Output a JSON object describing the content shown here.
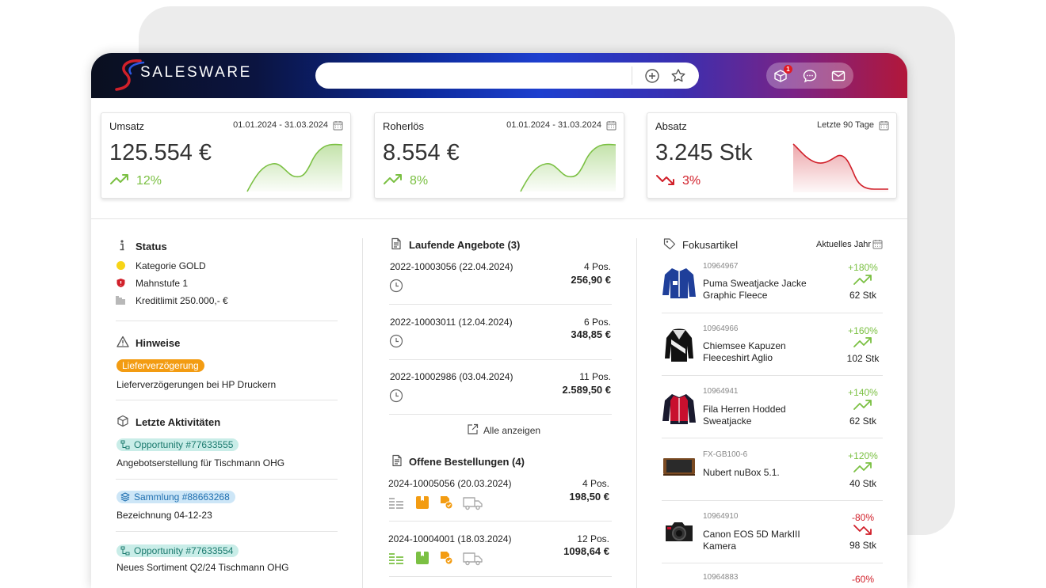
{
  "app": {
    "brand": "SALESWARE",
    "notification_count": "1"
  },
  "search": {
    "value": "",
    "placeholder": ""
  },
  "kpis": [
    {
      "title": "Umsatz",
      "date": "01.01.2024 - 31.03.2024",
      "value": "125.554 €",
      "change": "12%",
      "trend": "up",
      "color": "#7bc043"
    },
    {
      "title": "Roherlös",
      "date": "01.01.2024 - 31.03.2024",
      "value": "8.554 €",
      "change": "8%",
      "trend": "up",
      "color": "#7bc043"
    },
    {
      "title": "Absatz",
      "date": "Letzte 90 Tage",
      "value": "3.245 Stk",
      "change": "3%",
      "trend": "down",
      "color": "#d1202a"
    }
  ],
  "status": {
    "title": "Status",
    "items": [
      {
        "label": "Kategorie GOLD",
        "icon": "gold-dot-icon"
      },
      {
        "label": "Mahnstufe 1",
        "icon": "shield-icon"
      },
      {
        "label": "Kreditlimit 250.000,- €",
        "icon": "barcode-icon"
      }
    ]
  },
  "hinweise": {
    "title": "Hinweise",
    "tag": "Lieferverzögerung",
    "text": "Lieferverzögerungen bei HP Druckern"
  },
  "activities": {
    "title": "Letzte Aktivitäten",
    "items": [
      {
        "tag": "Opportunity #77633555",
        "kind": "green",
        "text": "Angebotserstellung für Tischmann OHG"
      },
      {
        "tag": "Sammlung #88663268",
        "kind": "blue",
        "text": "Bezeichnung 04-12-23"
      },
      {
        "tag": "Opportunity #77633554",
        "kind": "green",
        "text": "Neues Sortiment Q2/24 Tischmann OHG"
      }
    ]
  },
  "offers": {
    "title": "Laufende Angebote (3)",
    "items": [
      {
        "id": "2022-10003056 (22.04.2024)",
        "pos": "4 Pos.",
        "amount": "256,90 €"
      },
      {
        "id": "2022-10003011 (12.04.2024)",
        "pos": "6 Pos.",
        "amount": "348,85 €"
      },
      {
        "id": "2022-10002986 (03.04.2024)",
        "pos": "11 Pos.",
        "amount": "2.589,50 €"
      }
    ],
    "show_all": "Alle anzeigen"
  },
  "orders": {
    "title": "Offene Bestellungen (4)",
    "items": [
      {
        "id": "2024-10005056 (20.03.2024)",
        "pos": "4 Pos.",
        "amount": "198,50 €"
      },
      {
        "id": "2024-10004001 (18.03.2024)",
        "pos": "12 Pos.",
        "amount": "1098,64 €"
      }
    ]
  },
  "focus": {
    "title": "Fokusartikel",
    "period": "Aktuelles Jahr",
    "items": [
      {
        "sku": "10964967",
        "name": "Puma Sweatjacke Jacke Graphic Fleece",
        "pct": "+180%",
        "qty": "62 Stk",
        "trend": "up",
        "icon": "blue-jacket-icon"
      },
      {
        "sku": "10964966",
        "name": "Chiemsee Kapuzen Fleeceshirt Aglio",
        "pct": "+160%",
        "qty": "102 Stk",
        "trend": "up",
        "icon": "black-white-hoodie-icon"
      },
      {
        "sku": "10964941",
        "name": "Fila Herren Hodded Sweatjacke",
        "pct": "+140%",
        "qty": "62 Stk",
        "trend": "up",
        "icon": "red-jacket-icon"
      },
      {
        "sku": "FX-GB100-6",
        "name": "Nubert nuBox 5.1.",
        "pct": "+120%",
        "qty": "40 Stk",
        "trend": "up",
        "icon": "speaker-icon"
      },
      {
        "sku": "10964910",
        "name": "Canon EOS 5D MarkIII Kamera",
        "pct": "-80%",
        "qty": "98 Stk",
        "trend": "down",
        "icon": "camera-icon"
      },
      {
        "sku": "10964883",
        "name": "",
        "pct": "-60%",
        "qty": "",
        "trend": "down",
        "icon": "product-icon"
      }
    ]
  }
}
